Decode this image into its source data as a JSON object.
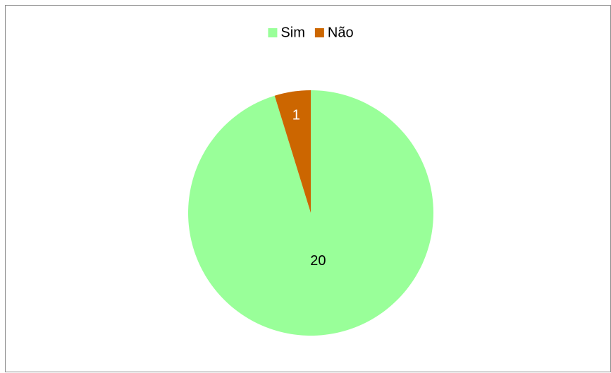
{
  "chart_data": {
    "type": "pie",
    "categories": [
      "Sim",
      "Não"
    ],
    "values": [
      20,
      1
    ],
    "colors": [
      "#99ff99",
      "#cc6600"
    ],
    "legend": "top"
  }
}
